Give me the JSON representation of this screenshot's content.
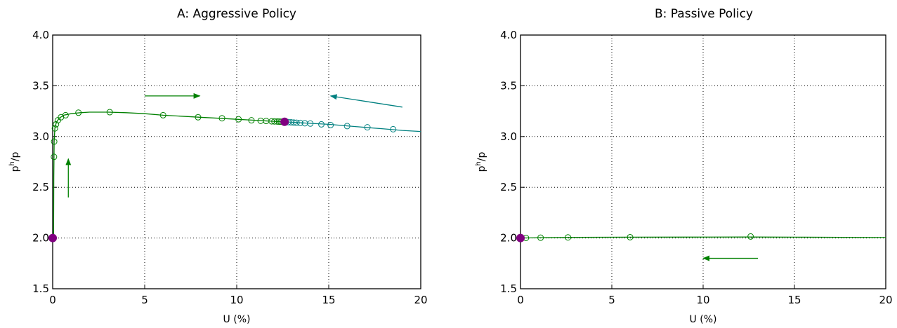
{
  "chart_data": [
    {
      "type": "line",
      "title": "A: Aggressive Policy",
      "xlabel": "U (%)",
      "ylabel_base": "p",
      "ylabel_sup": "h",
      "ylabel_tail": "/p",
      "xlim": [
        0,
        20
      ],
      "ylim": [
        1.5,
        4.0
      ],
      "xticks": [
        "0",
        "5",
        "10",
        "15",
        "20"
      ],
      "yticks": [
        "1.5",
        "2.0",
        "2.5",
        "3.0",
        "3.5",
        "4.0"
      ],
      "grid": true,
      "series": [
        {
          "color": "#008000",
          "line": [
            [
              0.05,
              2.0
            ],
            [
              0.06,
              2.6
            ],
            [
              0.08,
              2.95
            ],
            [
              0.12,
              3.08
            ],
            [
              0.2,
              3.14
            ],
            [
              0.35,
              3.18
            ],
            [
              0.6,
              3.21
            ],
            [
              1.0,
              3.225
            ],
            [
              1.5,
              3.235
            ],
            [
              2.0,
              3.24
            ],
            [
              3.0,
              3.24
            ],
            [
              4.0,
              3.235
            ],
            [
              5.0,
              3.225
            ],
            [
              6.0,
              3.21
            ],
            [
              7.0,
              3.2
            ],
            [
              8.0,
              3.19
            ],
            [
              9.0,
              3.18
            ],
            [
              10.0,
              3.17
            ],
            [
              11.0,
              3.16
            ],
            [
              12.0,
              3.15
            ],
            [
              12.6,
              3.145
            ]
          ],
          "markers": [
            [
              0.07,
              2.8
            ],
            [
              0.08,
              2.95
            ],
            [
              0.12,
              3.08
            ],
            [
              0.18,
              3.12
            ],
            [
              0.28,
              3.16
            ],
            [
              0.45,
              3.19
            ],
            [
              0.7,
              3.21
            ],
            [
              1.4,
              3.235
            ],
            [
              3.1,
              3.24
            ],
            [
              6.0,
              3.21
            ],
            [
              7.9,
              3.19
            ],
            [
              9.2,
              3.18
            ],
            [
              10.1,
              3.17
            ],
            [
              10.8,
              3.16
            ],
            [
              11.3,
              3.155
            ],
            [
              11.6,
              3.153
            ],
            [
              11.9,
              3.15
            ],
            [
              12.05,
              3.149
            ],
            [
              12.2,
              3.148
            ],
            [
              12.3,
              3.147
            ],
            [
              12.4,
              3.146
            ]
          ]
        },
        {
          "color": "#008080",
          "line": [
            [
              12.6,
              3.145
            ],
            [
              14,
              3.13
            ],
            [
              15,
              3.12
            ],
            [
              16,
              3.105
            ],
            [
              17,
              3.09
            ],
            [
              18,
              3.075
            ],
            [
              19,
              3.06
            ],
            [
              20,
              3.05
            ]
          ],
          "markers": [
            [
              12.8,
              3.142
            ],
            [
              12.95,
              3.14
            ],
            [
              13.1,
              3.138
            ],
            [
              13.25,
              3.136
            ],
            [
              13.45,
              3.134
            ],
            [
              13.7,
              3.131
            ],
            [
              14.0,
              3.128
            ],
            [
              14.6,
              3.12
            ],
            [
              15.1,
              3.113
            ],
            [
              16.0,
              3.103
            ],
            [
              17.1,
              3.091
            ],
            [
              18.5,
              3.072
            ]
          ]
        }
      ],
      "points": [
        [
          0.0,
          2.0
        ],
        [
          12.6,
          3.145
        ]
      ],
      "point_color": "#800080",
      "arrows": [
        {
          "from": [
            5.0,
            3.4
          ],
          "to": [
            8.0,
            3.4
          ],
          "color": "#008000"
        },
        {
          "from": [
            19.0,
            3.29
          ],
          "to": [
            15.1,
            3.4
          ],
          "color": "#008080"
        },
        {
          "from": [
            0.85,
            2.4
          ],
          "to": [
            0.85,
            2.78
          ],
          "color": "#008000"
        }
      ]
    },
    {
      "type": "line",
      "title": "B: Passive Policy",
      "xlabel": "U (%)",
      "ylabel_base": "p",
      "ylabel_sup": "h",
      "ylabel_tail": "/p",
      "xlim": [
        0,
        20
      ],
      "ylim": [
        1.5,
        4.0
      ],
      "xticks": [
        "0",
        "5",
        "10",
        "15",
        "20"
      ],
      "yticks": [
        "1.5",
        "2.0",
        "2.5",
        "3.0",
        "3.5",
        "4.0"
      ],
      "grid": true,
      "series": [
        {
          "color": "#008000",
          "line": [
            [
              0,
              2.0
            ],
            [
              1,
              2.003
            ],
            [
              3,
              2.006
            ],
            [
              6,
              2.008
            ],
            [
              9,
              2.009
            ],
            [
              12.5,
              2.01
            ],
            [
              15,
              2.008
            ],
            [
              20,
              2.005
            ]
          ],
          "markers": [
            [
              0.3,
              2.001
            ],
            [
              1.1,
              2.003
            ],
            [
              2.6,
              2.006
            ],
            [
              6.0,
              2.008
            ],
            [
              12.6,
              2.015
            ]
          ]
        }
      ],
      "points": [
        [
          0.0,
          2.0
        ]
      ],
      "point_color": "#800080",
      "arrows": [
        {
          "from": [
            13.0,
            1.8
          ],
          "to": [
            10.0,
            1.8
          ],
          "color": "#008000"
        }
      ]
    }
  ]
}
